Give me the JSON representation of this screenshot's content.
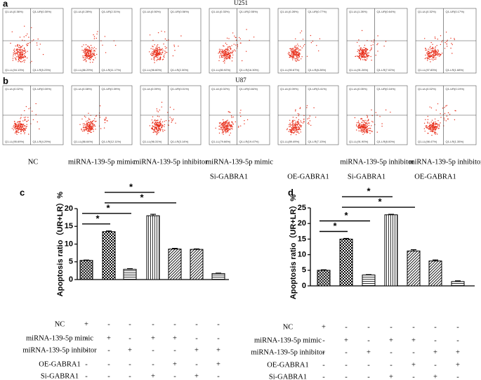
{
  "figure": {
    "panel_a": {
      "letter": "a",
      "title": "U251",
      "plots": [
        {
          "ul": "Q1-UL(0.36%)",
          "ur": "Q1-UR(0.30%)",
          "ll": "Q1-LL(94.13%)",
          "lr": "Q1-LR(5.23%)"
        },
        {
          "ul": "Q1-UL(0.28%)",
          "ur": "Q1-UR(2.31%)",
          "ll": "Q1-LL(86.29%)",
          "lr": "Q1-LR(11.17%)"
        },
        {
          "ul": "Q1-UL(0.50%)",
          "ur": "Q1-UR(0.56%)",
          "ll": "Q1-LL(96.60%)",
          "lr": "Q1-LR(2.30%)"
        },
        {
          "ul": "Q1-UL(0.33%)",
          "ur": "Q1-UR(2.55%)",
          "ll": "Q1-LL(80.92%)",
          "lr": "Q1-LR(16.30%)"
        },
        {
          "ul": "Q1-UL(0.28%)",
          "ur": "Q1-UR(0.77%)",
          "ll": "Q1-LL(90.67%)",
          "lr": "Q1-LR(8.28%)"
        },
        {
          "ul": "Q1-UL(1.26%)",
          "ur": "Q1-UR(0.64%)",
          "ll": "Q1-LL(91.26%)",
          "lr": "Q1-LR(7.02%)"
        },
        {
          "ul": "Q1-UL(0.32%)",
          "ur": "Q1-UR(0.17%)",
          "ll": "Q1-LL(97.83%)",
          "lr": "Q1-LR(1.68%)"
        }
      ]
    },
    "panel_b": {
      "letter": "b",
      "title": "U87",
      "plots": [
        {
          "ul": "Q1-UL(0.02%)",
          "ur": "Q1-UR(0.00%)",
          "ll": "Q1-LL(95.69%)",
          "lr": "Q1-LR(4.29%)"
        },
        {
          "ul": "Q1-UL(0.08%)",
          "ur": "Q1-UR(0.39%)",
          "ll": "Q1-LL(86.64%)",
          "lr": "Q1-LR(12.11%)"
        },
        {
          "ul": "Q1-UL(0.09%)",
          "ur": "Q1-UR(0.01%)",
          "ll": "Q1-LL(96.31%)",
          "lr": "Q1-LR(3.14%)"
        },
        {
          "ul": "Q1-UL(0.02%)",
          "ur": "Q1-UR(0.84%)",
          "ll": "Q1-LL(79.66%)",
          "lr": "Q1-LR(19.47%)"
        },
        {
          "ul": "Q1-UL(0.09%)",
          "ur": "Q1-UR(3.41%)",
          "ll": "Q1-LL(89.49%)",
          "lr": "Q1-LR(7.13%)"
        },
        {
          "ul": "Q1-UL(0.05%)",
          "ur": "Q1-UR(0.16%)",
          "ll": "Q1-LL(91.90%)",
          "lr": "Q1-LR(8.00%)"
        },
        {
          "ul": "Q1-UL(0.02%)",
          "ur": "Q1-UR(0.19%)",
          "ll": "Q1-LL(98.47%)",
          "lr": "Q1-LR(1.35%)"
        }
      ]
    },
    "group_labels": [
      {
        "top": "NC"
      },
      {
        "top": "miRNA-139-5p mimic"
      },
      {
        "top": "miRNA-139-5p inhibitor"
      },
      {
        "top": "miRNA-139-5p mimic",
        "bottom": "Si-GABRA1"
      },
      {
        "bottom": "OE-GABRA1"
      },
      {
        "top": "miRNA-139-5p inhibitor",
        "bottom": "Si-GABRA1"
      },
      {
        "top": "miRNA-139-5p inhibitor",
        "bottom": "OE-GABRA1"
      }
    ]
  },
  "chart_data": [
    {
      "type": "bar",
      "letter": "c",
      "ylabel": "Apoptosis ratio（UR+LR）%",
      "ylim": [
        0,
        20
      ],
      "yticks": [
        0,
        5,
        10,
        15,
        20
      ],
      "values": [
        5.4,
        13.5,
        2.9,
        18.0,
        8.6,
        8.5,
        1.7
      ],
      "errors": [
        0.1,
        0.2,
        0.15,
        0.4,
        0.2,
        0.15,
        0.1
      ],
      "patterns": [
        "crosshatch",
        "checker",
        "hlines",
        "vlines",
        "diag",
        "diag",
        "hlines"
      ],
      "color": "#000000",
      "significance": [
        {
          "label": "*",
          "pair": [
            0,
            1
          ]
        },
        {
          "label": "*",
          "pair": [
            0,
            2
          ]
        },
        {
          "label": "*",
          "pair": [
            1,
            4
          ]
        },
        {
          "label": "*",
          "pair": [
            1,
            3
          ]
        }
      ],
      "design": [
        {
          "label": "NC",
          "signs": [
            "+",
            "-",
            "-",
            "-",
            "-",
            "-",
            "-"
          ]
        },
        {
          "label": "miRNA-139-5p mimic",
          "signs": [
            "-",
            "+",
            "-",
            "+",
            "+",
            "-",
            "-"
          ]
        },
        {
          "label": "miRNA-139-5p inhibitor",
          "signs": [
            "-",
            "-",
            "+",
            "-",
            "-",
            "+",
            "+"
          ]
        },
        {
          "label": "OE-GABRA1",
          "signs": [
            "-",
            "-",
            "-",
            "-",
            "+",
            "-",
            "+"
          ]
        },
        {
          "label": "Si-GABRA1",
          "signs": [
            "-",
            "-",
            "-",
            "+",
            "-",
            "+",
            "-"
          ]
        }
      ]
    },
    {
      "type": "bar",
      "letter": "d",
      "ylabel": "Apoptosis ratio（UR+LR）%",
      "ylim": [
        0,
        25
      ],
      "yticks": [
        0,
        5,
        10,
        15,
        20,
        25
      ],
      "values": [
        5.0,
        15.0,
        3.5,
        22.8,
        11.2,
        8.0,
        1.4
      ],
      "errors": [
        0.15,
        0.2,
        0.1,
        0.15,
        0.4,
        0.3,
        0.2
      ],
      "patterns": [
        "crosshatch",
        "checker",
        "hlines",
        "vlines",
        "diag",
        "diag",
        "hlines"
      ],
      "color": "#000000",
      "significance": [
        {
          "label": "*",
          "pair": [
            0,
            1
          ]
        },
        {
          "label": "*",
          "pair": [
            0,
            2
          ]
        },
        {
          "label": "*",
          "pair": [
            1,
            4
          ]
        },
        {
          "label": "*",
          "pair": [
            1,
            3
          ]
        }
      ],
      "design": [
        {
          "label": "NC",
          "signs": [
            "+",
            "-",
            "-",
            "-",
            "-",
            "-",
            "-"
          ]
        },
        {
          "label": "miRNA-139-5p mimic",
          "signs": [
            "-",
            "+",
            "-",
            "+",
            "+",
            "-",
            "-"
          ]
        },
        {
          "label": "miRNA-139-5p inhibitor",
          "signs": [
            "-",
            "-",
            "+",
            "-",
            "-",
            "+",
            "+"
          ]
        },
        {
          "label": "OE-GABRA1",
          "signs": [
            "-",
            "-",
            "-",
            "-",
            "+",
            "-",
            "+"
          ]
        },
        {
          "label": "Si-GABRA1",
          "signs": [
            "-",
            "-",
            "-",
            "+",
            "-",
            "+",
            "-"
          ]
        }
      ]
    }
  ]
}
